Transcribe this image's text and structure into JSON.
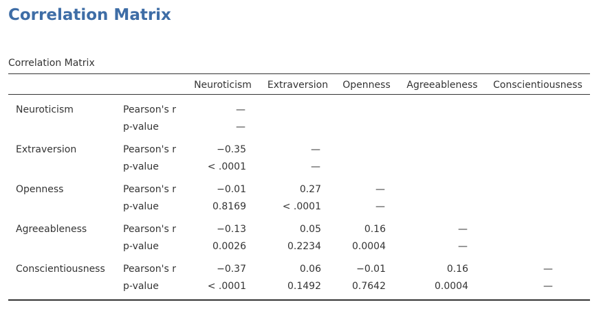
{
  "page": {
    "title": "Correlation Matrix",
    "table_caption": "Correlation Matrix"
  },
  "table": {
    "columns": [
      "Neuroticism",
      "Extraversion",
      "Openness",
      "Agreeableness",
      "Conscientiousness"
    ],
    "stat_labels": {
      "r": "Pearson's r",
      "p": "p-value"
    },
    "rows": [
      {
        "name": "Neuroticism",
        "r": [
          "—"
        ],
        "p": [
          "—"
        ]
      },
      {
        "name": "Extraversion",
        "r": [
          "−0.35",
          "—"
        ],
        "p": [
          "< .0001",
          "—"
        ]
      },
      {
        "name": "Openness",
        "r": [
          "−0.01",
          "0.27",
          "—"
        ],
        "p": [
          "0.8169",
          "< .0001",
          "—"
        ]
      },
      {
        "name": "Agreeableness",
        "r": [
          "−0.13",
          "0.05",
          "0.16",
          "—"
        ],
        "p": [
          "0.0026",
          "0.2234",
          "0.0004",
          "—"
        ]
      },
      {
        "name": "Conscientiousness",
        "r": [
          "−0.37",
          "0.06",
          "−0.01",
          "0.16",
          "—"
        ],
        "p": [
          "< .0001",
          "0.1492",
          "0.7642",
          "0.0004",
          "—"
        ]
      }
    ]
  }
}
